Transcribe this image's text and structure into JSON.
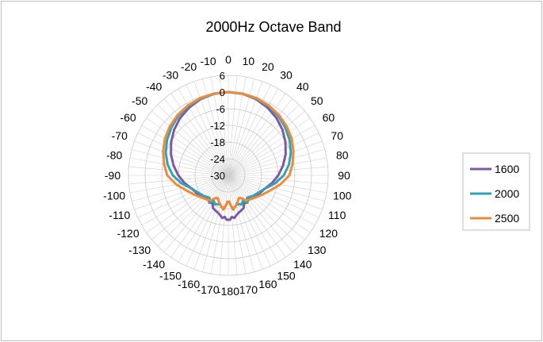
{
  "chart_data": {
    "type": "polar-line",
    "title": "2000Hz Octave Band",
    "radial_axis": {
      "min": -30,
      "max": 6,
      "ticks": [
        "6",
        "0",
        "-6",
        "-12",
        "-18",
        "-24",
        "-30"
      ],
      "tick_values": [
        6,
        0,
        -6,
        -12,
        -18,
        -24,
        -30
      ]
    },
    "angular_axis": {
      "spoke_step_deg": 5,
      "labels_right": [
        "0",
        "10",
        "20",
        "30",
        "40",
        "50",
        "60",
        "70",
        "80",
        "90",
        "100",
        "110",
        "120",
        "130",
        "140",
        "150",
        "160",
        "170"
      ],
      "labels_left": [
        "-10",
        "-20",
        "-30",
        "-40",
        "-50",
        "-60",
        "-70",
        "-80",
        "-90",
        "-100",
        "-110",
        "-120",
        "-130",
        "-140",
        "-150",
        "-160",
        "-170"
      ],
      "label_bottom": "-180",
      "right_angles": [
        0,
        10,
        20,
        30,
        40,
        50,
        60,
        70,
        80,
        90,
        100,
        110,
        120,
        130,
        140,
        150,
        160,
        170
      ],
      "left_angles": [
        -10,
        -20,
        -30,
        -40,
        -50,
        -60,
        -70,
        -80,
        -90,
        -100,
        -110,
        -120,
        -130,
        -140,
        -150,
        -160,
        -170
      ],
      "bottom_angle": 180
    },
    "legend": {
      "placement": "right",
      "entries": [
        "1600",
        "2000",
        "2500"
      ]
    },
    "angles": [
      0,
      10,
      20,
      30,
      40,
      50,
      60,
      70,
      80,
      90,
      100,
      110,
      120,
      130,
      140,
      145,
      150,
      155,
      160,
      165,
      170,
      172,
      175,
      178,
      180
    ],
    "series": [
      {
        "name": "1600",
        "color": "#7b5aa6",
        "values": [
          0,
          -0.2,
          -0.8,
          -1.8,
          -3,
          -4.5,
          -6.2,
          -8,
          -10,
          -12,
          -14,
          -16,
          -17,
          -18,
          -19,
          -18,
          -18.5,
          -17,
          -16.5,
          -16,
          -15,
          -14.5,
          -15,
          -14,
          -14
        ]
      },
      {
        "name": "2000",
        "color": "#31a3b5",
        "values": [
          0,
          -0.2,
          -0.6,
          -1.2,
          -2,
          -3.2,
          -4.5,
          -6,
          -7.8,
          -10,
          -13,
          -16,
          -17.5,
          -18.5,
          -19.5,
          -18,
          -19.5,
          -18.5,
          -19,
          -19,
          -18,
          -18,
          -19,
          -20.5,
          -20.5
        ]
      },
      {
        "name": "2500",
        "color": "#ef8a3a",
        "values": [
          0,
          -0.1,
          -0.4,
          -0.9,
          -1.6,
          -2.5,
          -3.6,
          -5,
          -6.5,
          -8,
          -11,
          -14,
          -16,
          -17.5,
          -18.5,
          -19,
          -20.5,
          -21,
          -20,
          -19,
          -18,
          -17.5,
          -19,
          -20.5,
          -20.5
        ]
      }
    ]
  }
}
